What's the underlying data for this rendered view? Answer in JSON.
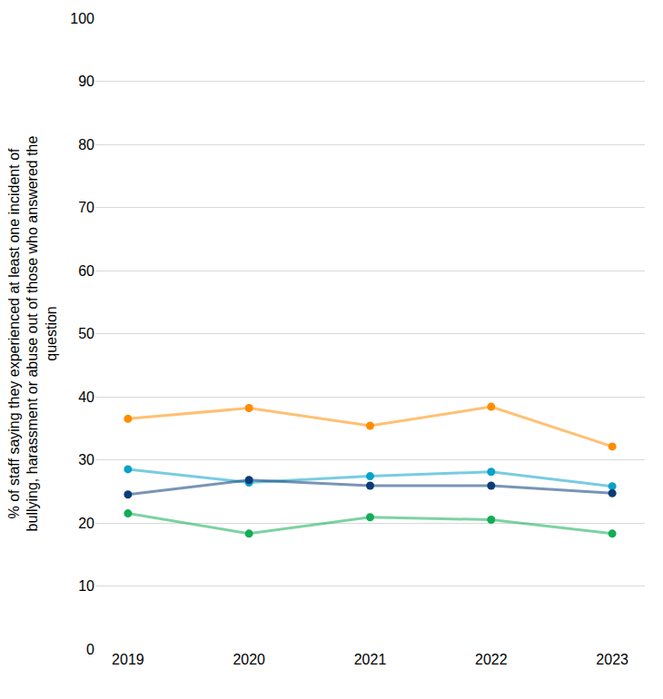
{
  "chart_data": {
    "type": "line",
    "y_label": "% of staff saying they experienced at least one incident of bullying, harassment or abuse out of those who answered the question",
    "categories": [
      "2019",
      "2020",
      "2021",
      "2022",
      "2023"
    ],
    "series": [
      {
        "color": "#ff8c00",
        "values": [
          36.5,
          38.2,
          35.4,
          38.4,
          32.1
        ],
        "marker": "circle",
        "line_style": "solid"
      },
      {
        "color": "#0aa2c8",
        "values": [
          28.5,
          26.4,
          27.4,
          28.1,
          25.8
        ],
        "marker": "circle",
        "line_style": "solid"
      },
      {
        "color": "#0b3c78",
        "values": [
          24.5,
          26.8,
          25.9,
          25.9,
          24.7
        ],
        "marker": "circle",
        "line_style": "solid"
      },
      {
        "color": "#12ad55",
        "values": [
          21.5,
          18.3,
          20.9,
          20.5,
          18.3
        ],
        "marker": "circle",
        "line_style": "solid"
      }
    ],
    "ylim": [
      0,
      100
    ],
    "yticks": [
      0,
      10,
      20,
      30,
      40,
      50,
      60,
      70,
      80,
      90,
      100
    ],
    "grid": true
  }
}
